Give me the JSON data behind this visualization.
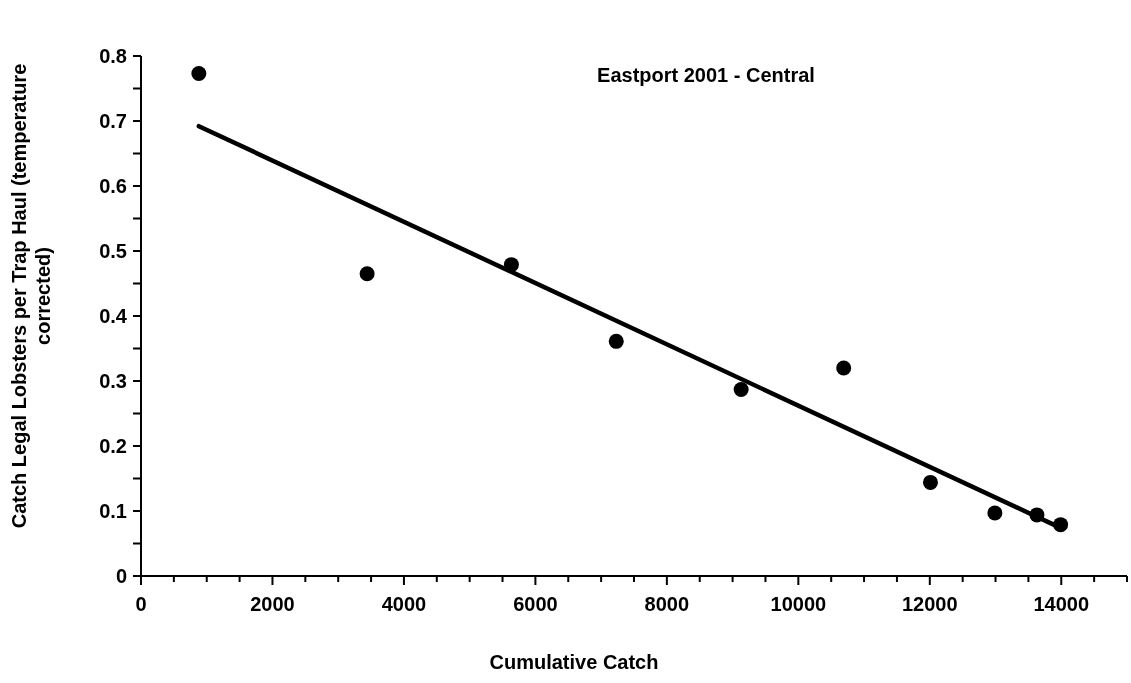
{
  "chart_data": {
    "type": "scatter",
    "title": "Eastport 2001 - Central",
    "xlabel": "Cumulative Catch",
    "ylabel": "Catch Legal Lobsters per Trap Haul (temperature corrected)",
    "grid": false,
    "xlim": [
      0,
      15000
    ],
    "xticks": [
      0,
      {
        "value": 500,
        "label": null
      },
      {
        "value": 1000,
        "label": null
      },
      {
        "value": 1500,
        "label": null
      },
      2000,
      {
        "value": 2500,
        "label": null
      },
      {
        "value": 3000,
        "label": null
      },
      {
        "value": 3500,
        "label": null
      },
      4000,
      {
        "value": 4500,
        "label": null
      },
      {
        "value": 5000,
        "label": null
      },
      {
        "value": 5500,
        "label": null
      },
      6000,
      {
        "value": 6500,
        "label": null
      },
      {
        "value": 7000,
        "label": null
      },
      {
        "value": 7500,
        "label": null
      },
      8000,
      {
        "value": 8500,
        "label": null
      },
      {
        "value": 9000,
        "label": null
      },
      {
        "value": 9500,
        "label": null
      },
      10000,
      {
        "value": 10500,
        "label": null
      },
      {
        "value": 11000,
        "label": null
      },
      {
        "value": 11500,
        "label": null
      },
      12000,
      {
        "value": 12500,
        "label": null
      },
      {
        "value": 13000,
        "label": null
      },
      {
        "value": 13500,
        "label": null
      },
      14000,
      {
        "value": 14500,
        "label": null
      },
      {
        "value": 15000,
        "label": null
      }
    ],
    "ylim": [
      0,
      0.8
    ],
    "yticks": [
      0,
      {
        "value": 0.05,
        "label": null
      },
      0.1,
      {
        "value": 0.15,
        "label": null
      },
      0.2,
      {
        "value": 0.25,
        "label": null
      },
      0.3,
      {
        "value": 0.35,
        "label": null
      },
      0.4,
      {
        "value": 0.45,
        "label": null
      },
      0.5,
      {
        "value": 0.55,
        "label": null
      },
      0.6,
      {
        "value": 0.65,
        "label": null
      },
      0.7,
      {
        "value": 0.75,
        "label": null
      },
      0.8
    ],
    "series": [
      {
        "color": "#000000",
        "marker": "circle",
        "x": [
          880,
          3440,
          5635,
          7230,
          9130,
          10690,
          12010,
          12990,
          13630,
          13990
        ],
        "values": [
          0.773,
          0.465,
          0.479,
          0.361,
          0.287,
          0.32,
          0.144,
          0.097,
          0.094,
          0.079
        ]
      },
      {
        "type": "line",
        "color": "#000000",
        "marker": "none",
        "line_style": "solid",
        "x": [
          880,
          13990
        ],
        "values": [
          0.692,
          0.074
        ]
      }
    ]
  }
}
